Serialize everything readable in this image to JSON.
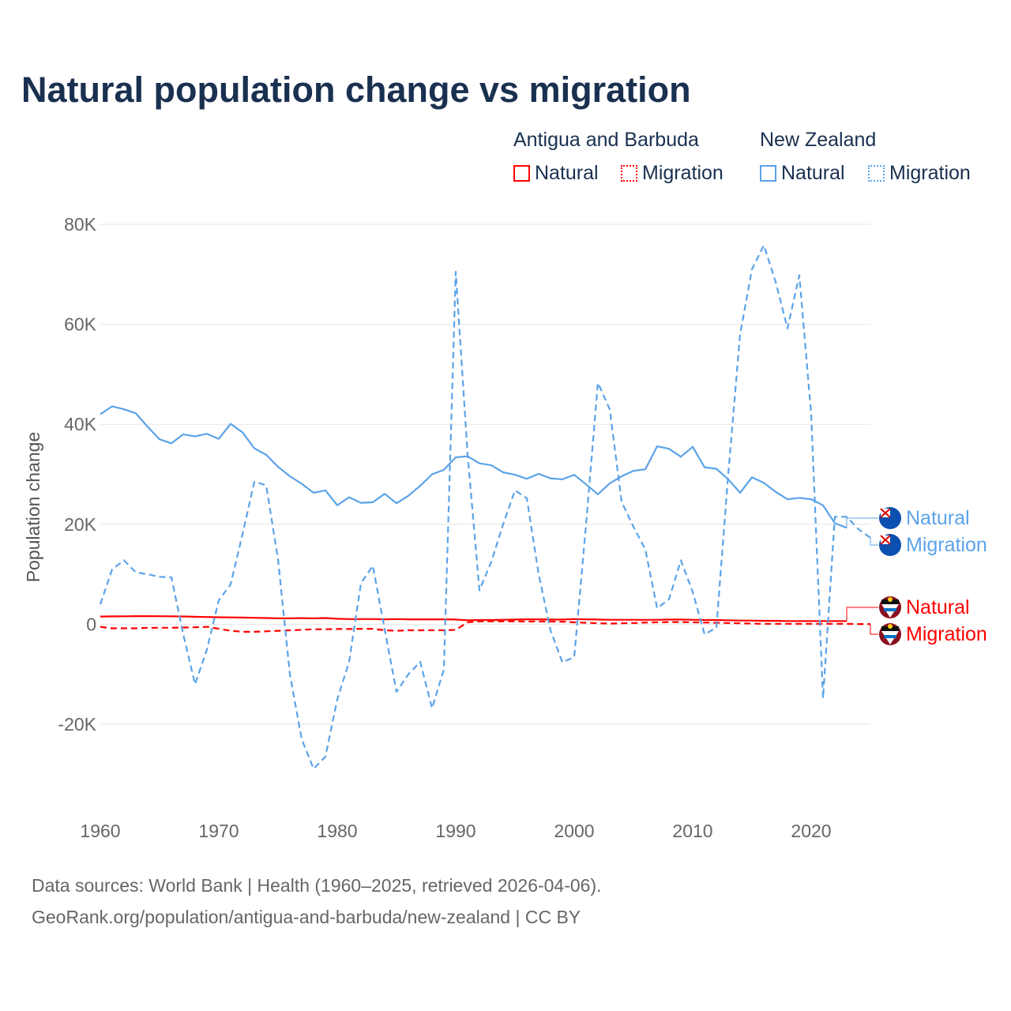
{
  "title": "Natural population change vs migration",
  "legend": {
    "groups": [
      {
        "name": "Antigua and Barbuda",
        "color": "#ff0000",
        "items": [
          "Natural",
          "Migration"
        ]
      },
      {
        "name": "New Zealand",
        "color": "#5ba3e8",
        "items": [
          "Natural",
          "Migration"
        ]
      }
    ]
  },
  "footer": {
    "line1": "Data sources: World Bank | Health (1960–2025, retrieved 2026-04-06).",
    "line2": "GeoRank.org/population/antigua-and-barbuda/new-zealand | CC BY"
  },
  "chart_data": {
    "type": "line",
    "title": "Natural population change vs migration",
    "xlabel": "",
    "ylabel": "Population change",
    "xlim": [
      1960,
      2025
    ],
    "ylim": [
      -20000,
      80000
    ],
    "yticks": [
      -20000,
      0,
      20000,
      40000,
      60000,
      80000
    ],
    "ytick_labels": [
      "-20K",
      "0",
      "20K",
      "40K",
      "60K",
      "80K"
    ],
    "xticks": [
      1960,
      1970,
      1980,
      1990,
      2000,
      2010,
      2020
    ],
    "xtick_labels": [
      "1960",
      "1970",
      "1980",
      "1990",
      "2000",
      "2010",
      "2020"
    ],
    "grid": true,
    "series": [
      {
        "name": "New Zealand Natural",
        "label": "Natural",
        "color": "#5ba3e8",
        "dash": false,
        "start": 1960,
        "values": [
          42000,
          43600,
          43000,
          42200,
          39500,
          37000,
          36200,
          38000,
          37600,
          38100,
          37100,
          40100,
          38400,
          35200,
          33900,
          31500,
          29600,
          28100,
          26300,
          26800,
          23800,
          25400,
          24300,
          24400,
          26100,
          24200,
          25700,
          27700,
          30000,
          30900,
          33400,
          33600,
          32200,
          31800,
          30400,
          29900,
          29100,
          30100,
          29200,
          29000,
          29900,
          28000,
          26000,
          28200,
          29600,
          30700,
          31000,
          35600,
          35100,
          33500,
          35500,
          31400,
          31100,
          29000,
          26300,
          29400,
          28300,
          26500,
          25000,
          25300,
          25000,
          23800,
          20200,
          19300
        ]
      },
      {
        "name": "New Zealand Migration",
        "label": "Migration",
        "color": "#5ba3e8",
        "dash": true,
        "start": 1960,
        "values": [
          4000,
          11000,
          12800,
          10400,
          10000,
          9500,
          9400,
          -2000,
          -12000,
          -5000,
          4800,
          8000,
          18000,
          28500,
          27800,
          13000,
          -10000,
          -23000,
          -28900,
          -26500,
          -15000,
          -7500,
          8200,
          11700,
          -1000,
          -13500,
          -10000,
          -7500,
          -16800,
          -9000,
          70500,
          34000,
          6800,
          12500,
          20000,
          26800,
          25200,
          10000,
          -1200,
          -7600,
          -6600,
          20000,
          48300,
          43000,
          24500,
          19500,
          15000,
          3200,
          5000,
          12800,
          6500,
          -2000,
          -700,
          30000,
          58000,
          71000,
          75800,
          68500,
          59200,
          69800,
          42000,
          -14800,
          21500,
          21500,
          19000,
          17300
        ]
      },
      {
        "name": "Antigua and Barbuda Natural",
        "label": "Natural",
        "color": "#ff0000",
        "dash": false,
        "start": 1960,
        "values": [
          1550,
          1580,
          1600,
          1620,
          1630,
          1610,
          1590,
          1560,
          1500,
          1450,
          1400,
          1380,
          1350,
          1300,
          1250,
          1200,
          1200,
          1230,
          1180,
          1250,
          1100,
          1050,
          1050,
          1050,
          1000,
          1050,
          1000,
          1000,
          1000,
          1000,
          950,
          800,
          850,
          850,
          900,
          950,
          1000,
          1000,
          950,
          950,
          1050,
          1000,
          950,
          900,
          900,
          900,
          880,
          900,
          950,
          950,
          900,
          850,
          850,
          800,
          750,
          750,
          700,
          700,
          650,
          650,
          650,
          650,
          650,
          650
        ]
      },
      {
        "name": "Antigua and Barbuda Migration",
        "label": "Migration",
        "color": "#ff0000",
        "dash": true,
        "start": 1960,
        "values": [
          -500,
          -800,
          -800,
          -800,
          -700,
          -700,
          -700,
          -650,
          -600,
          -500,
          -900,
          -1300,
          -1500,
          -1500,
          -1400,
          -1300,
          -1200,
          -1100,
          -1000,
          -1000,
          -950,
          -950,
          -900,
          -900,
          -1200,
          -1300,
          -1200,
          -1200,
          -1200,
          -1200,
          -1100,
          400,
          600,
          600,
          600,
          600,
          550,
          550,
          550,
          500,
          400,
          300,
          200,
          150,
          200,
          250,
          350,
          400,
          450,
          450,
          400,
          350,
          300,
          250,
          200,
          150,
          100,
          100,
          100,
          100,
          100,
          100,
          100,
          100,
          50,
          50
        ]
      }
    ]
  }
}
